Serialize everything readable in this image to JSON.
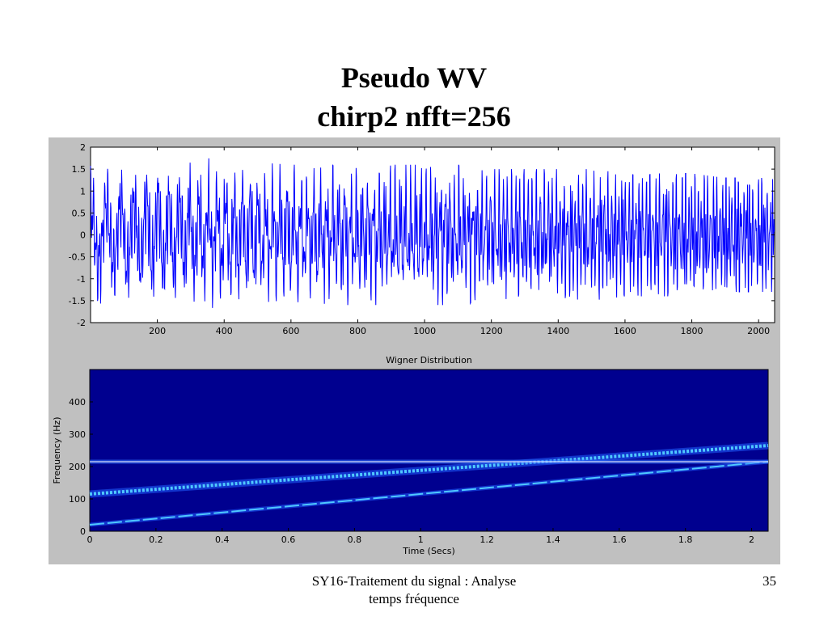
{
  "slide": {
    "title_line1": "Pseudo WV",
    "title_line2": "chirp2 nfft=256",
    "footer_line1": "SY16-Traitement du signal : Analyse",
    "footer_line2": "temps fréquence",
    "page_number": "35"
  },
  "colors": {
    "figure_background": "#c0c0c0",
    "signal_line": "#0000ff",
    "spectrogram_background": "#00008f",
    "ridge": "#4fc8ff",
    "ridge_peak": "#ffffff"
  },
  "chart_data": [
    {
      "type": "line",
      "title": "",
      "xlabel": "",
      "ylabel": "",
      "xlim": [
        0,
        2048
      ],
      "ylim": [
        -2,
        2
      ],
      "xticks": [
        200,
        400,
        600,
        800,
        1000,
        1200,
        1400,
        1600,
        1800,
        2000
      ],
      "yticks": [
        2,
        1.5,
        1,
        0.5,
        0,
        -0.5,
        -1,
        -1.5,
        -2
      ],
      "series": [
        {
          "description_free": true,
          "x": [
            0,
            100,
            200,
            300,
            400,
            500,
            600,
            700,
            800,
            900,
            1000,
            1100,
            1200,
            1300,
            1400,
            1500,
            1600,
            1700,
            1800,
            1900,
            2000,
            2048
          ],
          "envelope": [
            1.9,
            1.9,
            1.85,
            1.8,
            1.75,
            1.65,
            1.6,
            1.6,
            1.6,
            1.6,
            1.6,
            1.6,
            1.5,
            1.5,
            1.5,
            1.5,
            1.4,
            1.4,
            1.4,
            1.3,
            1.3,
            1.3
          ]
        }
      ],
      "grid": false
    },
    {
      "type": "heatmap",
      "title": "Wigner Distribution",
      "xlabel": "Time (Secs)",
      "ylabel": "Frequency (Hz)",
      "xlim": [
        0,
        2.05
      ],
      "ylim": [
        0,
        500
      ],
      "xticks": [
        0,
        0.2,
        0.4,
        0.6,
        0.8,
        1,
        1.2,
        1.4,
        1.6,
        1.8,
        2
      ],
      "yticks": [
        0,
        100,
        200,
        300,
        400
      ],
      "components": [
        {
          "kind": "chirp",
          "t": [
            0,
            2.05
          ],
          "f": [
            20,
            215
          ]
        },
        {
          "kind": "chirp",
          "t": [
            0,
            2.05
          ],
          "f": [
            115,
            265
          ]
        },
        {
          "kind": "tone",
          "t": [
            0,
            2.05
          ],
          "f": [
            215,
            215
          ]
        }
      ]
    }
  ]
}
